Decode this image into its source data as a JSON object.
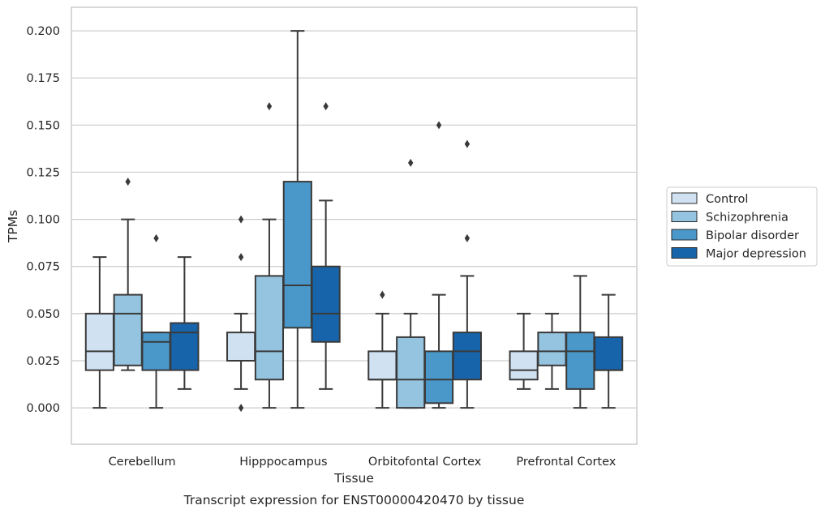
{
  "chart_data": {
    "type": "box",
    "title": "Transcript expression for ENST00000420470 by tissue",
    "xlabel": "Tissue",
    "ylabel": "TPMs",
    "ylim": [
      -0.0193,
      0.2125
    ],
    "yticks": [
      0.0,
      0.025,
      0.05,
      0.075,
      0.1,
      0.125,
      0.15,
      0.175,
      0.2
    ],
    "ytick_labels": [
      "0.000",
      "0.025",
      "0.050",
      "0.075",
      "0.100",
      "0.125",
      "0.150",
      "0.175",
      "0.200"
    ],
    "grid": "horizontal",
    "legend_position": "outside-right",
    "categories": [
      "Cerebellum",
      "Hipppocampus",
      "Orbitofontal Cortex",
      "Prefrontal Cortex"
    ],
    "series": [
      {
        "name": "Control",
        "color": "#d0e1f2",
        "boxes": [
          {
            "whisker_low": 0.0,
            "q1": 0.02,
            "median": 0.03,
            "q3": 0.05,
            "whisker_high": 0.08,
            "outliers": []
          },
          {
            "whisker_low": 0.01,
            "q1": 0.025,
            "median": 0.025,
            "q3": 0.04,
            "whisker_high": 0.05,
            "outliers": [
              0.0,
              0.08,
              0.1
            ]
          },
          {
            "whisker_low": 0.0,
            "q1": 0.015,
            "median": 0.015,
            "q3": 0.03,
            "whisker_high": 0.05,
            "outliers": [
              0.06
            ]
          },
          {
            "whisker_low": 0.01,
            "q1": 0.015,
            "median": 0.02,
            "q3": 0.03,
            "whisker_high": 0.05,
            "outliers": []
          }
        ]
      },
      {
        "name": "Schizophrenia",
        "color": "#94c4df",
        "boxes": [
          {
            "whisker_low": 0.02,
            "q1": 0.0225,
            "median": 0.05,
            "q3": 0.06,
            "whisker_high": 0.1,
            "outliers": [
              0.12
            ]
          },
          {
            "whisker_low": 0.0,
            "q1": 0.015,
            "median": 0.03,
            "q3": 0.07,
            "whisker_high": 0.1,
            "outliers": [
              0.16
            ]
          },
          {
            "whisker_low": 0.0,
            "q1": 0.0,
            "median": 0.015,
            "q3": 0.0375,
            "whisker_high": 0.05,
            "outliers": [
              0.13
            ]
          },
          {
            "whisker_low": 0.01,
            "q1": 0.0225,
            "median": 0.03,
            "q3": 0.04,
            "whisker_high": 0.05,
            "outliers": []
          }
        ]
      },
      {
        "name": "Bipolar disorder",
        "color": "#4a98c9",
        "boxes": [
          {
            "whisker_low": 0.0,
            "q1": 0.02,
            "median": 0.035,
            "q3": 0.04,
            "whisker_high": 0.04,
            "outliers": [
              0.09
            ]
          },
          {
            "whisker_low": 0.0,
            "q1": 0.0425,
            "median": 0.065,
            "q3": 0.12,
            "whisker_high": 0.2,
            "outliers": []
          },
          {
            "whisker_low": 0.0,
            "q1": 0.0025,
            "median": 0.015,
            "q3": 0.03,
            "whisker_high": 0.06,
            "outliers": [
              0.15
            ]
          },
          {
            "whisker_low": 0.0,
            "q1": 0.01,
            "median": 0.03,
            "q3": 0.04,
            "whisker_high": 0.07,
            "outliers": []
          }
        ]
      },
      {
        "name": "Major depression",
        "color": "#1764ab",
        "boxes": [
          {
            "whisker_low": 0.01,
            "q1": 0.02,
            "median": 0.04,
            "q3": 0.045,
            "whisker_high": 0.08,
            "outliers": []
          },
          {
            "whisker_low": 0.01,
            "q1": 0.035,
            "median": 0.05,
            "q3": 0.075,
            "whisker_high": 0.11,
            "outliers": [
              0.16
            ]
          },
          {
            "whisker_low": 0.0,
            "q1": 0.015,
            "median": 0.03,
            "q3": 0.04,
            "whisker_high": 0.07,
            "outliers": [
              0.09,
              0.14
            ]
          },
          {
            "whisker_low": 0.0,
            "q1": 0.02,
            "median": 0.02,
            "q3": 0.0375,
            "whisker_high": 0.06,
            "outliers": []
          }
        ]
      }
    ]
  }
}
